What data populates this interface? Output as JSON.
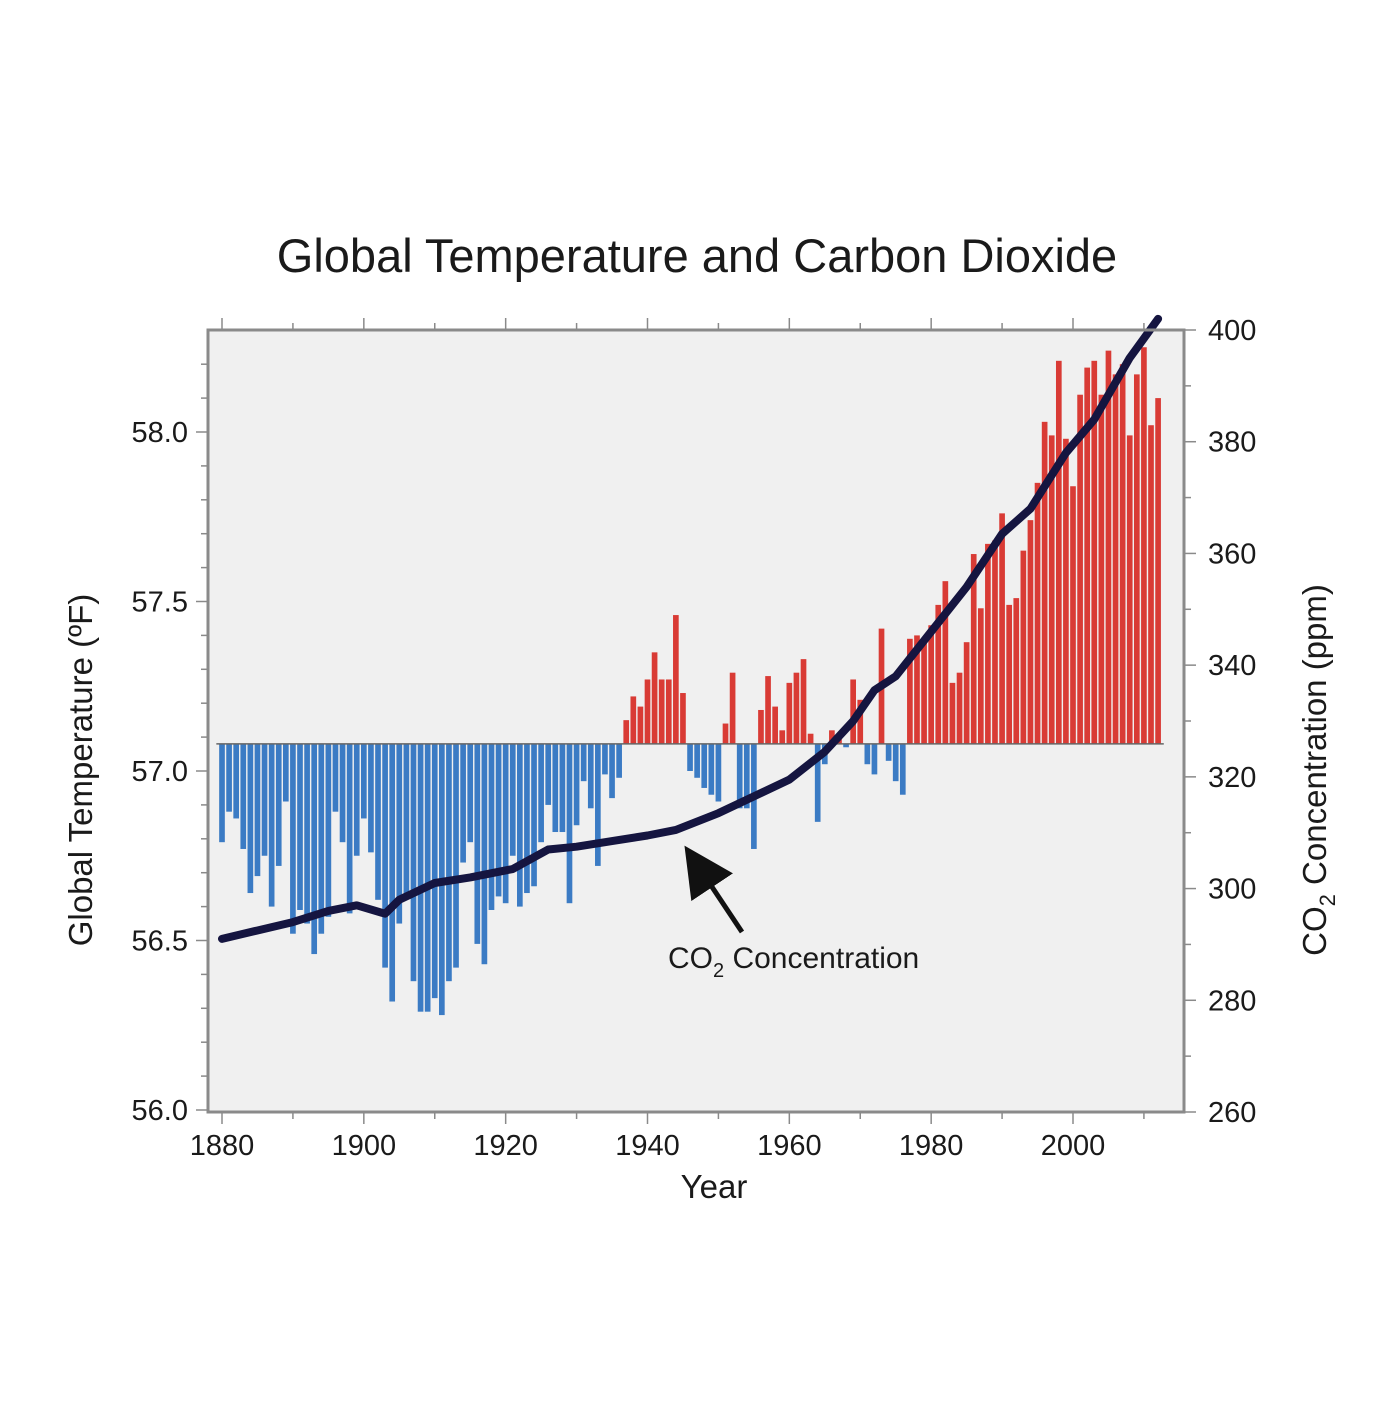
{
  "chart_data": {
    "type": "bar",
    "title": "Global Temperature and Carbon Dioxide",
    "xlabel": "Year",
    "ylabel": "Global Temperature (ºF)",
    "y2label_prefix": "CO",
    "y2label_sub": "2",
    "y2label_suffix": " Concentration (ppm)",
    "xlim": [
      1878,
      2016
    ],
    "ylim": [
      56.0,
      58.3
    ],
    "y2lim": [
      260,
      400
    ],
    "baseline": 57.08,
    "x_ticks": [
      1880,
      1900,
      1920,
      1940,
      1960,
      1980,
      2000
    ],
    "y_ticks": [
      56.0,
      56.5,
      57.0,
      57.5,
      58.0
    ],
    "y_tick_labels": [
      "56.0",
      "56.5",
      "57.0",
      "57.5",
      "58.0"
    ],
    "y2_ticks": [
      260,
      280,
      300,
      320,
      340,
      360,
      380,
      400
    ],
    "grid": false,
    "colors": {
      "above": "#d93b35",
      "below": "#3b7bc4",
      "co2_line": "#151540",
      "plot_bg": "#f0f0f0",
      "frame": "#8a8a8a",
      "baseline": "#666666",
      "arrow": "#111111"
    },
    "series": [
      {
        "name": "Global Temperature (ºF)",
        "axis": "left",
        "type": "bar",
        "years": [
          1880,
          1881,
          1882,
          1883,
          1884,
          1885,
          1886,
          1887,
          1888,
          1889,
          1890,
          1891,
          1892,
          1893,
          1894,
          1895,
          1896,
          1897,
          1898,
          1899,
          1900,
          1901,
          1902,
          1903,
          1904,
          1905,
          1906,
          1907,
          1908,
          1909,
          1910,
          1911,
          1912,
          1913,
          1914,
          1915,
          1916,
          1917,
          1918,
          1919,
          1920,
          1921,
          1922,
          1923,
          1924,
          1925,
          1926,
          1927,
          1928,
          1929,
          1930,
          1931,
          1932,
          1933,
          1934,
          1935,
          1936,
          1937,
          1938,
          1939,
          1940,
          1941,
          1942,
          1943,
          1944,
          1945,
          1946,
          1947,
          1948,
          1949,
          1950,
          1951,
          1952,
          1953,
          1954,
          1955,
          1956,
          1957,
          1958,
          1959,
          1960,
          1961,
          1962,
          1963,
          1964,
          1965,
          1966,
          1967,
          1968,
          1969,
          1970,
          1971,
          1972,
          1973,
          1974,
          1975,
          1976,
          1977,
          1978,
          1979,
          1980,
          1981,
          1982,
          1983,
          1984,
          1985,
          1986,
          1987,
          1988,
          1989,
          1990,
          1991,
          1992,
          1993,
          1994,
          1995,
          1996,
          1997,
          1998,
          1999,
          2000,
          2001,
          2002,
          2003,
          2004,
          2005,
          2006,
          2007,
          2008,
          2009,
          2010,
          2011,
          2012
        ],
        "values": [
          56.79,
          56.88,
          56.86,
          56.77,
          56.64,
          56.69,
          56.75,
          56.6,
          56.72,
          56.91,
          56.52,
          56.59,
          56.55,
          56.46,
          56.52,
          56.57,
          56.88,
          56.79,
          56.58,
          56.75,
          56.86,
          56.76,
          56.62,
          56.42,
          56.32,
          56.55,
          56.63,
          56.38,
          56.29,
          56.29,
          56.33,
          56.28,
          56.38,
          56.42,
          56.73,
          56.79,
          56.49,
          56.43,
          56.59,
          56.63,
          56.61,
          56.75,
          56.6,
          56.64,
          56.66,
          56.79,
          56.9,
          56.82,
          56.82,
          56.61,
          56.84,
          56.97,
          56.89,
          56.72,
          56.99,
          56.92,
          56.98,
          57.15,
          57.22,
          57.19,
          57.27,
          57.35,
          57.27,
          57.27,
          57.46,
          57.23,
          57.0,
          56.98,
          56.95,
          56.93,
          56.91,
          57.14,
          57.29,
          56.89,
          56.89,
          56.77,
          57.18,
          57.28,
          57.19,
          57.12,
          57.26,
          57.29,
          57.33,
          57.11,
          56.85,
          57.02,
          57.12,
          57.1,
          57.07,
          57.27,
          57.21,
          57.02,
          56.99,
          57.42,
          57.03,
          56.97,
          56.93,
          57.39,
          57.4,
          57.39,
          57.43,
          57.49,
          57.56,
          57.26,
          57.29,
          57.38,
          57.64,
          57.48,
          57.67,
          57.68,
          57.76,
          57.49,
          57.51,
          57.65,
          57.74,
          57.85,
          58.03,
          57.99,
          58.21,
          57.98,
          57.84,
          58.11,
          58.19,
          58.21,
          58.11,
          58.24,
          58.17,
          58.2,
          57.99,
          58.17,
          58.25,
          58.02,
          58.1
        ]
      },
      {
        "name": "CO2 Concentration (ppm)",
        "axis": "right",
        "type": "line",
        "x": [
          1880,
          1885,
          1890,
          1895,
          1899,
          1903,
          1905,
          1910,
          1915,
          1921,
          1926,
          1930,
          1935,
          1940,
          1944,
          1950,
          1955,
          1960,
          1965,
          1969,
          1972,
          1975,
          1980,
          1985,
          1990,
          1994,
          1999,
          2003,
          2008,
          2012
        ],
        "y": [
          291,
          292.5,
          294,
          296,
          297,
          295.5,
          298,
          301,
          302,
          303.5,
          307,
          307.5,
          308.5,
          309.5,
          310.5,
          313.5,
          316.5,
          319.5,
          324.5,
          330,
          335.5,
          338,
          346,
          354,
          363.5,
          368,
          378,
          384,
          395,
          402
        ]
      }
    ],
    "annotations": [
      {
        "text_prefix": "CO",
        "text_sub": "2",
        "text_suffix": " Concentration",
        "arrow_target": [
          1946,
          308
        ]
      }
    ]
  }
}
